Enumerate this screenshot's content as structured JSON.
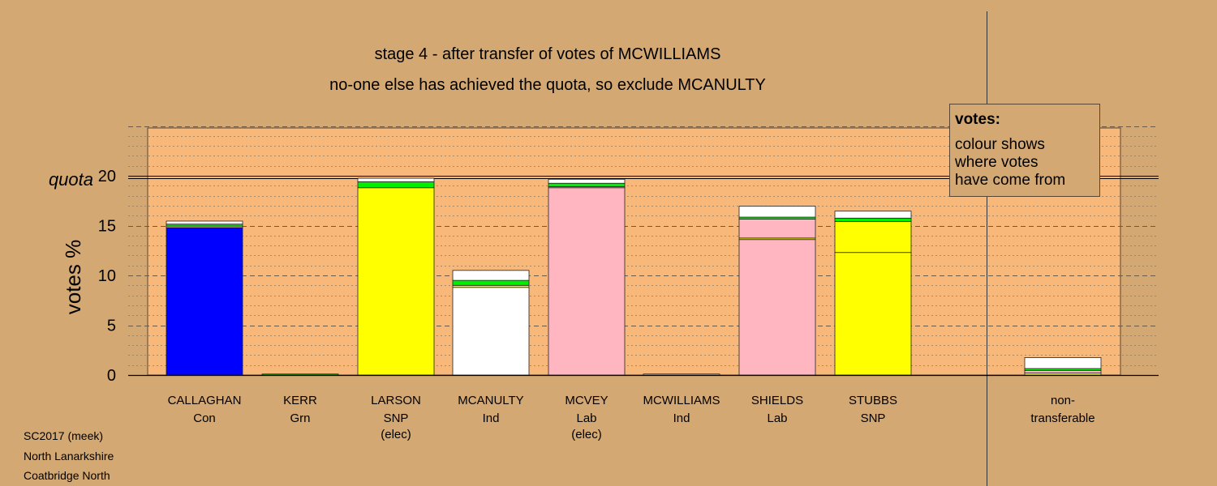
{
  "chart_data": {
    "type": "bar",
    "stacked": true,
    "title": "stage 4 - after transfer of votes of MCWILLIAMS",
    "subtitle": "no-one else has achieved the quota, so exclude MCANULTY",
    "ylabel": "votes %",
    "ylim": [
      0,
      25
    ],
    "yticks": [
      0,
      5,
      10,
      15,
      20
    ],
    "quota": {
      "label": "quota",
      "value": 19.8
    },
    "grid": true,
    "categories": [
      {
        "name": "CALLAGHAN",
        "party": "Con",
        "note": ""
      },
      {
        "name": "KERR",
        "party": "Grn",
        "note": ""
      },
      {
        "name": "LARSON",
        "party": "SNP",
        "note": "(elec)"
      },
      {
        "name": "MCANULTY",
        "party": "Ind",
        "note": ""
      },
      {
        "name": "MCVEY",
        "party": "Lab",
        "note": "(elec)"
      },
      {
        "name": "MCWILLIAMS",
        "party": "Ind",
        "note": ""
      },
      {
        "name": "SHIELDS",
        "party": "Lab",
        "note": ""
      },
      {
        "name": "STUBBS",
        "party": "SNP",
        "note": ""
      }
    ],
    "nontransferable": {
      "line1": "non-",
      "line2": "transferable"
    },
    "bars": [
      [
        {
          "v": 14.8,
          "c": "#0000ff"
        },
        {
          "v": 0.15,
          "c": "#ffb6c1"
        },
        {
          "v": 0.2,
          "c": "#00ee00"
        },
        {
          "v": 0.3,
          "c": "#ffffff"
        }
      ],
      [
        {
          "v": 0.1,
          "c": "#00ee00"
        }
      ],
      [
        {
          "v": 18.8,
          "c": "#ffff00"
        },
        {
          "v": 0.6,
          "c": "#00ee00"
        },
        {
          "v": 0.35,
          "c": "#ffffff"
        }
      ],
      [
        {
          "v": 8.8,
          "c": "#ffffff"
        },
        {
          "v": 0.2,
          "c": "#ffff00"
        },
        {
          "v": 0.5,
          "c": "#00ee00"
        },
        {
          "v": 1.0,
          "c": "#ffffff"
        }
      ],
      [
        {
          "v": 18.8,
          "c": "#ffb6c1"
        },
        {
          "v": 0.1,
          "c": "#ffff00"
        },
        {
          "v": 0.35,
          "c": "#00ee00"
        },
        {
          "v": 0.4,
          "c": "#ffffff"
        }
      ],
      [
        {
          "v": 0.1,
          "c": "#ffffff"
        }
      ],
      [
        {
          "v": 13.6,
          "c": "#ffb6c1"
        },
        {
          "v": 0.15,
          "c": "#ffff00"
        },
        {
          "v": 1.9,
          "c": "#ffb6c1"
        },
        {
          "v": 0.2,
          "c": "#00ee00"
        },
        {
          "v": 1.1,
          "c": "#ffffff"
        }
      ],
      [
        {
          "v": 12.3,
          "c": "#ffff00"
        },
        {
          "v": 3.1,
          "c": "#ffff00"
        },
        {
          "v": 0.35,
          "c": "#00ee00"
        },
        {
          "v": 0.7,
          "c": "#ffffff"
        }
      ],
      [
        {
          "v": 0.2,
          "c": "#ffff00"
        },
        {
          "v": 0.25,
          "c": "#ffb6c1"
        },
        {
          "v": 0.2,
          "c": "#00ee00"
        },
        {
          "v": 1.1,
          "c": "#ffffff"
        }
      ]
    ]
  },
  "legend": {
    "title": "votes:",
    "line1": "colour shows",
    "line2": "where votes",
    "line3": "have come from"
  },
  "footer": {
    "line1": "SC2017 (meek)",
    "line2": "North Lanarkshire",
    "line3": "Coatbridge North"
  },
  "colors": {
    "background": "#d4a873",
    "plot_area": "#f7b87a"
  }
}
